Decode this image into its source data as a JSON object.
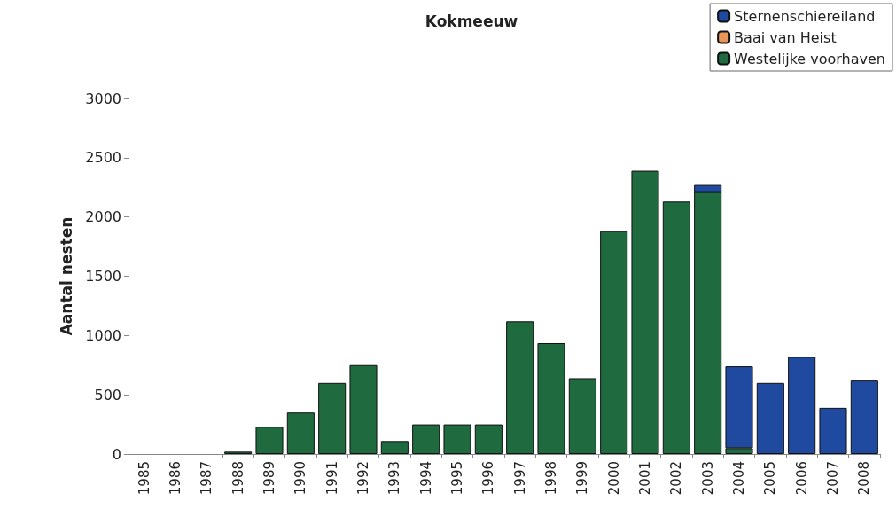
{
  "chart_data": {
    "type": "bar",
    "title": "Kokmeeuw",
    "ylabel": "Aantal nesten",
    "stacked": true,
    "categories": [
      "1985",
      "1986",
      "1987",
      "1988",
      "1989",
      "1990",
      "1991",
      "1992",
      "1993",
      "1994",
      "1995",
      "1996",
      "1997",
      "1998",
      "1999",
      "2000",
      "2001",
      "2002",
      "2003",
      "2004",
      "2005",
      "2006",
      "2007",
      "2008"
    ],
    "series": [
      {
        "name": "Westelijke voorhaven",
        "color": "#1f6b3f",
        "values": [
          null,
          null,
          null,
          20,
          230,
          350,
          600,
          750,
          110,
          250,
          250,
          250,
          1120,
          935,
          640,
          1880,
          2390,
          2130,
          2210,
          50,
          null,
          null,
          null,
          null
        ]
      },
      {
        "name": "Baai van Heist",
        "color": "#e8955a",
        "values": [
          null,
          null,
          null,
          null,
          null,
          null,
          null,
          null,
          null,
          null,
          null,
          null,
          null,
          null,
          null,
          null,
          null,
          null,
          null,
          null,
          null,
          null,
          null,
          null
        ]
      },
      {
        "name": "Sternenschiereiland",
        "color": "#1f4aa0",
        "values": [
          null,
          null,
          null,
          null,
          null,
          null,
          null,
          null,
          null,
          null,
          null,
          null,
          null,
          null,
          null,
          null,
          null,
          null,
          60,
          690,
          600,
          820,
          390,
          620
        ]
      }
    ],
    "ylim": [
      0,
      3000
    ],
    "yticks": [
      0,
      500,
      1000,
      1500,
      2000,
      2500,
      3000
    ],
    "grid": false,
    "legend": "top right"
  }
}
